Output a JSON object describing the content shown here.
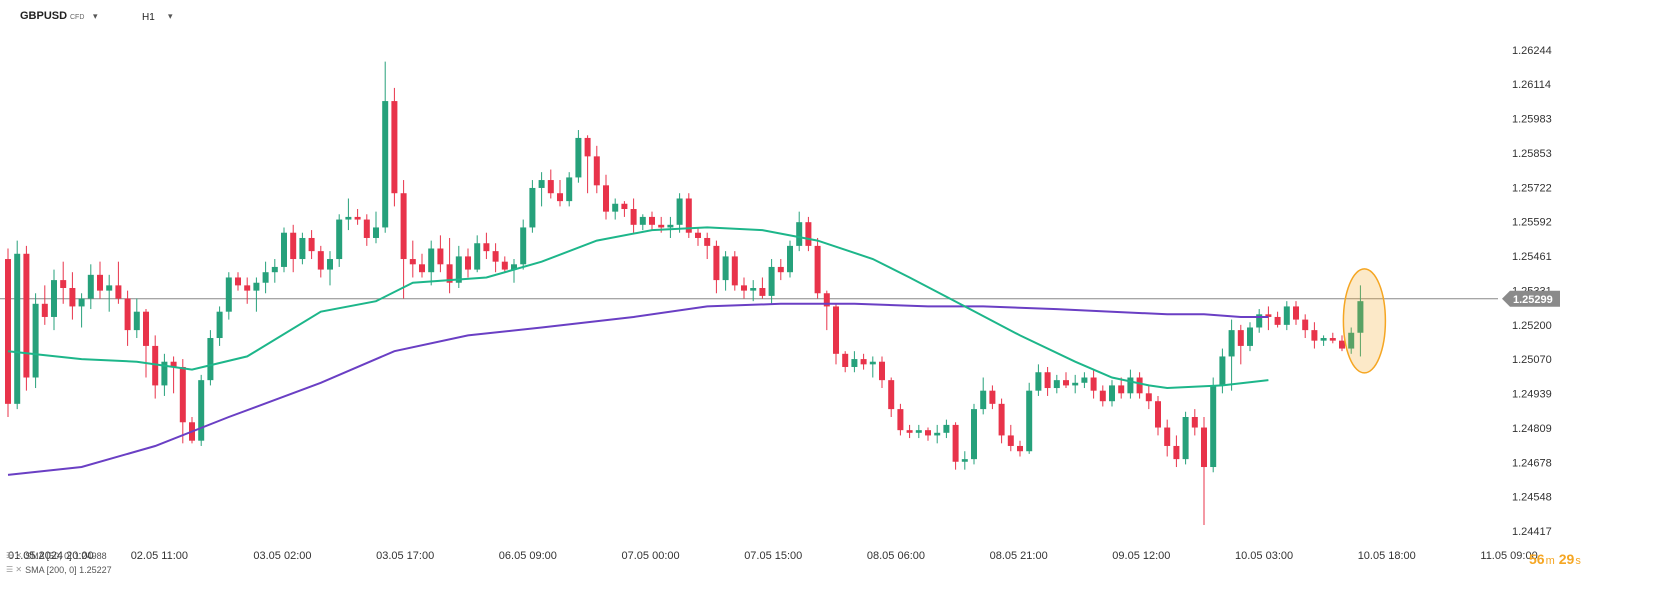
{
  "toolbar": {
    "symbol": "GBPUSD",
    "symbol_tag": "CFD",
    "timeframe": "H1",
    "caret": "▾"
  },
  "colors": {
    "bull": "#26a17b",
    "bear": "#e8334a",
    "sma50": "#1db68a",
    "sma200": "#6a3fc4",
    "price_line": "#888888",
    "price_tag": "#8a8a8a",
    "highlight": "#f5a623"
  },
  "legend": [
    {
      "icons": "☰ ✕",
      "label": "SMA [50, 0] 1.24988"
    },
    {
      "icons": "☰ ✕",
      "label": "SMA [200, 0] 1.25227"
    }
  ],
  "countdown": {
    "minutes": "56",
    "m": "m",
    "seconds": "29",
    "s": "s"
  },
  "chart_data": {
    "type": "candlestick",
    "y_ticks": [
      "1.26244",
      "1.26114",
      "1.25983",
      "1.25853",
      "1.25722",
      "1.25592",
      "1.25461",
      "1.25331",
      "1.25200",
      "1.25070",
      "1.24939",
      "1.24809",
      "1.24678",
      "1.24548",
      "1.24417"
    ],
    "y_range": [
      1.24417,
      1.26244
    ],
    "current_price": "1.25299",
    "x_ticks": [
      "01.05.2024  20:00",
      "02.05  11:00",
      "03.05  02:00",
      "03.05  17:00",
      "06.05  09:00",
      "07.05  00:00",
      "07.05  15:00",
      "08.05  06:00",
      "08.05  21:00",
      "09.05  12:00",
      "10.05  03:00",
      "10.05  18:00",
      "11.05  09:00"
    ],
    "candles": [
      [
        1.2545,
        1.2549,
        1.2485,
        1.249
      ],
      [
        1.249,
        1.2552,
        1.2488,
        1.2547
      ],
      [
        1.2547,
        1.255,
        1.2495,
        1.25
      ],
      [
        1.25,
        1.2532,
        1.2496,
        1.2528
      ],
      [
        1.2528,
        1.2535,
        1.252,
        1.2523
      ],
      [
        1.2523,
        1.2541,
        1.2518,
        1.2537
      ],
      [
        1.2537,
        1.2544,
        1.2528,
        1.2534
      ],
      [
        1.2534,
        1.254,
        1.2522,
        1.2527
      ],
      [
        1.2527,
        1.2532,
        1.2519,
        1.253
      ],
      [
        1.253,
        1.2543,
        1.2526,
        1.2539
      ],
      [
        1.2539,
        1.2544,
        1.253,
        1.2533
      ],
      [
        1.2533,
        1.2539,
        1.2525,
        1.2535
      ],
      [
        1.2535,
        1.2544,
        1.2528,
        1.253
      ],
      [
        1.253,
        1.2533,
        1.2512,
        1.2518
      ],
      [
        1.2518,
        1.253,
        1.2515,
        1.2525
      ],
      [
        1.2525,
        1.2526,
        1.25,
        1.2512
      ],
      [
        1.2512,
        1.2516,
        1.2492,
        1.2497
      ],
      [
        1.2497,
        1.2509,
        1.2493,
        1.2506
      ],
      [
        1.2506,
        1.2508,
        1.2494,
        1.2504
      ],
      [
        1.2504,
        1.2507,
        1.2475,
        1.2483
      ],
      [
        1.2483,
        1.2485,
        1.2475,
        1.2476
      ],
      [
        1.2476,
        1.2501,
        1.2474,
        1.2499
      ],
      [
        1.2499,
        1.2518,
        1.2497,
        1.2515
      ],
      [
        1.2515,
        1.2527,
        1.2512,
        1.2525
      ],
      [
        1.2525,
        1.254,
        1.2522,
        1.2538
      ],
      [
        1.2538,
        1.254,
        1.2533,
        1.2535
      ],
      [
        1.2535,
        1.2538,
        1.2528,
        1.2533
      ],
      [
        1.2533,
        1.2538,
        1.2525,
        1.2536
      ],
      [
        1.2536,
        1.2544,
        1.2532,
        1.254
      ],
      [
        1.254,
        1.2545,
        1.2536,
        1.2542
      ],
      [
        1.2542,
        1.2557,
        1.254,
        1.2555
      ],
      [
        1.2555,
        1.2558,
        1.254,
        1.2545
      ],
      [
        1.2545,
        1.2555,
        1.2543,
        1.2553
      ],
      [
        1.2553,
        1.2556,
        1.2545,
        1.2548
      ],
      [
        1.2548,
        1.255,
        1.2538,
        1.2541
      ],
      [
        1.2541,
        1.2548,
        1.2535,
        1.2545
      ],
      [
        1.2545,
        1.2562,
        1.2542,
        1.256
      ],
      [
        1.256,
        1.2568,
        1.2556,
        1.2561
      ],
      [
        1.2561,
        1.2564,
        1.2558,
        1.256
      ],
      [
        1.256,
        1.2562,
        1.255,
        1.2553
      ],
      [
        1.2553,
        1.2563,
        1.2551,
        1.2557
      ],
      [
        1.2557,
        1.262,
        1.2555,
        1.2605
      ],
      [
        1.2605,
        1.261,
        1.2565,
        1.257
      ],
      [
        1.257,
        1.2575,
        1.253,
        1.2545
      ],
      [
        1.2545,
        1.2552,
        1.2538,
        1.2543
      ],
      [
        1.2543,
        1.2547,
        1.2538,
        1.254
      ],
      [
        1.254,
        1.2552,
        1.2535,
        1.2549
      ],
      [
        1.2549,
        1.2554,
        1.254,
        1.2543
      ],
      [
        1.2543,
        1.2553,
        1.2532,
        1.2536
      ],
      [
        1.2536,
        1.255,
        1.2534,
        1.2546
      ],
      [
        1.2546,
        1.2549,
        1.2538,
        1.2541
      ],
      [
        1.2541,
        1.2554,
        1.254,
        1.2551
      ],
      [
        1.2551,
        1.2555,
        1.2545,
        1.2548
      ],
      [
        1.2548,
        1.2551,
        1.254,
        1.2544
      ],
      [
        1.2544,
        1.2546,
        1.254,
        1.2541
      ],
      [
        1.2541,
        1.2545,
        1.2536,
        1.2543
      ],
      [
        1.2543,
        1.256,
        1.2541,
        1.2557
      ],
      [
        1.2557,
        1.2575,
        1.2555,
        1.2572
      ],
      [
        1.2572,
        1.2578,
        1.2565,
        1.2575
      ],
      [
        1.2575,
        1.2579,
        1.2568,
        1.257
      ],
      [
        1.257,
        1.2575,
        1.2565,
        1.2567
      ],
      [
        1.2567,
        1.2578,
        1.2565,
        1.2576
      ],
      [
        1.2576,
        1.2594,
        1.2574,
        1.2591
      ],
      [
        1.2591,
        1.2592,
        1.257,
        1.2584
      ],
      [
        1.2584,
        1.2588,
        1.257,
        1.2573
      ],
      [
        1.2573,
        1.2577,
        1.256,
        1.2563
      ],
      [
        1.2563,
        1.2568,
        1.256,
        1.2566
      ],
      [
        1.2566,
        1.2567,
        1.2561,
        1.2564
      ],
      [
        1.2564,
        1.2568,
        1.2555,
        1.2558
      ],
      [
        1.2558,
        1.2562,
        1.2556,
        1.2561
      ],
      [
        1.2561,
        1.2563,
        1.2556,
        1.2558
      ],
      [
        1.2558,
        1.2561,
        1.2555,
        1.2557
      ],
      [
        1.2557,
        1.2561,
        1.2553,
        1.2558
      ],
      [
        1.2558,
        1.257,
        1.2555,
        1.2568
      ],
      [
        1.2568,
        1.257,
        1.2553,
        1.2555
      ],
      [
        1.2555,
        1.2557,
        1.255,
        1.2553
      ],
      [
        1.2553,
        1.2555,
        1.2545,
        1.255
      ],
      [
        1.255,
        1.2552,
        1.2532,
        1.2537
      ],
      [
        1.2537,
        1.2548,
        1.2533,
        1.2546
      ],
      [
        1.2546,
        1.2548,
        1.2533,
        1.2535
      ],
      [
        1.2535,
        1.2538,
        1.253,
        1.2533
      ],
      [
        1.2533,
        1.2537,
        1.2529,
        1.2534
      ],
      [
        1.2534,
        1.2538,
        1.253,
        1.2531
      ],
      [
        1.2531,
        1.2545,
        1.2528,
        1.2542
      ],
      [
        1.2542,
        1.2545,
        1.2537,
        1.254
      ],
      [
        1.254,
        1.2552,
        1.2538,
        1.255
      ],
      [
        1.255,
        1.2563,
        1.2548,
        1.2559
      ],
      [
        1.2559,
        1.2561,
        1.2548,
        1.255
      ],
      [
        1.255,
        1.2553,
        1.253,
        1.2532
      ],
      [
        1.2532,
        1.2533,
        1.2518,
        1.2527
      ],
      [
        1.2527,
        1.2528,
        1.2505,
        1.2509
      ],
      [
        1.2509,
        1.251,
        1.2502,
        1.2504
      ],
      [
        1.2504,
        1.251,
        1.2502,
        1.2507
      ],
      [
        1.2507,
        1.2509,
        1.2503,
        1.2505
      ],
      [
        1.2505,
        1.2508,
        1.25,
        1.2506
      ],
      [
        1.2506,
        1.2508,
        1.2496,
        1.2499
      ],
      [
        1.2499,
        1.25,
        1.2485,
        1.2488
      ],
      [
        1.2488,
        1.249,
        1.2478,
        1.248
      ],
      [
        1.248,
        1.2482,
        1.2477,
        1.2479
      ],
      [
        1.2479,
        1.2482,
        1.2477,
        1.248
      ],
      [
        1.248,
        1.2481,
        1.2476,
        1.2478
      ],
      [
        1.2478,
        1.2482,
        1.2475,
        1.2479
      ],
      [
        1.2479,
        1.2484,
        1.2477,
        1.2482
      ],
      [
        1.2482,
        1.2483,
        1.2465,
        1.2468
      ],
      [
        1.2468,
        1.2472,
        1.2465,
        1.2469
      ],
      [
        1.2469,
        1.249,
        1.2467,
        1.2488
      ],
      [
        1.2488,
        1.25,
        1.2486,
        1.2495
      ],
      [
        1.2495,
        1.2497,
        1.2488,
        1.249
      ],
      [
        1.249,
        1.2492,
        1.2475,
        1.2478
      ],
      [
        1.2478,
        1.2482,
        1.2472,
        1.2474
      ],
      [
        1.2474,
        1.2476,
        1.247,
        1.2472
      ],
      [
        1.2472,
        1.2498,
        1.2471,
        1.2495
      ],
      [
        1.2495,
        1.2505,
        1.2493,
        1.2502
      ],
      [
        1.2502,
        1.2504,
        1.2493,
        1.2496
      ],
      [
        1.2496,
        1.2501,
        1.2494,
        1.2499
      ],
      [
        1.2499,
        1.2502,
        1.2496,
        1.2497
      ],
      [
        1.2497,
        1.2501,
        1.2494,
        1.2498
      ],
      [
        1.2498,
        1.2502,
        1.2496,
        1.25
      ],
      [
        1.25,
        1.2503,
        1.2492,
        1.2495
      ],
      [
        1.2495,
        1.2497,
        1.2489,
        1.2491
      ],
      [
        1.2491,
        1.2499,
        1.2489,
        1.2497
      ],
      [
        1.2497,
        1.25,
        1.2492,
        1.2494
      ],
      [
        1.2494,
        1.2503,
        1.2492,
        1.25
      ],
      [
        1.25,
        1.2502,
        1.2492,
        1.2494
      ],
      [
        1.2494,
        1.2497,
        1.2488,
        1.2491
      ],
      [
        1.2491,
        1.2493,
        1.2478,
        1.2481
      ],
      [
        1.2481,
        1.2484,
        1.247,
        1.2474
      ],
      [
        1.2474,
        1.2478,
        1.2466,
        1.2469
      ],
      [
        1.2469,
        1.2487,
        1.2467,
        1.2485
      ],
      [
        1.2485,
        1.2488,
        1.2478,
        1.2481
      ],
      [
        1.2481,
        1.2485,
        1.2444,
        1.2466
      ],
      [
        1.2466,
        1.25,
        1.2464,
        1.2497
      ],
      [
        1.2497,
        1.2511,
        1.2494,
        1.2508
      ],
      [
        1.2508,
        1.2522,
        1.2495,
        1.2518
      ],
      [
        1.2518,
        1.252,
        1.2505,
        1.2512
      ],
      [
        1.2512,
        1.2521,
        1.251,
        1.2519
      ],
      [
        1.2519,
        1.2526,
        1.2517,
        1.2524
      ],
      [
        1.2524,
        1.2527,
        1.2518,
        1.2523
      ],
      [
        1.2523,
        1.2525,
        1.2519,
        1.252
      ],
      [
        1.252,
        1.2529,
        1.2518,
        1.2527
      ],
      [
        1.2527,
        1.2529,
        1.252,
        1.2522
      ],
      [
        1.2522,
        1.2524,
        1.2515,
        1.2518
      ],
      [
        1.2518,
        1.2521,
        1.2511,
        1.2514
      ],
      [
        1.2514,
        1.2516,
        1.2512,
        1.2515
      ],
      [
        1.2515,
        1.2517,
        1.2513,
        1.2514
      ],
      [
        1.2514,
        1.2516,
        1.251,
        1.2511
      ],
      [
        1.2511,
        1.2519,
        1.2509,
        1.2517
      ],
      [
        1.2517,
        1.2535,
        1.2508,
        1.2529
      ]
    ],
    "sma50": [
      [
        0,
        1.251
      ],
      [
        8,
        1.2507
      ],
      [
        14,
        1.2506
      ],
      [
        20,
        1.2503
      ],
      [
        26,
        1.2508
      ],
      [
        34,
        1.2525
      ],
      [
        40,
        1.2529
      ],
      [
        44,
        1.2536
      ],
      [
        52,
        1.2538
      ],
      [
        58,
        1.2544
      ],
      [
        64,
        1.2552
      ],
      [
        70,
        1.2556
      ],
      [
        76,
        1.2557
      ],
      [
        82,
        1.2556
      ],
      [
        88,
        1.2552
      ],
      [
        94,
        1.2545
      ],
      [
        98,
        1.2538
      ],
      [
        104,
        1.2527
      ],
      [
        110,
        1.2516
      ],
      [
        116,
        1.2506
      ],
      [
        120,
        1.25
      ],
      [
        124,
        1.2497
      ],
      [
        126,
        1.2496
      ],
      [
        132,
        1.2497
      ],
      [
        137,
        1.2499
      ]
    ],
    "sma200": [
      [
        0,
        1.2463
      ],
      [
        8,
        1.2466
      ],
      [
        16,
        1.2474
      ],
      [
        24,
        1.2485
      ],
      [
        34,
        1.2498
      ],
      [
        42,
        1.251
      ],
      [
        50,
        1.2516
      ],
      [
        58,
        1.2519
      ],
      [
        68,
        1.2523
      ],
      [
        76,
        1.2527
      ],
      [
        84,
        1.2528
      ],
      [
        92,
        1.2528
      ],
      [
        100,
        1.2527
      ],
      [
        106,
        1.2527
      ],
      [
        114,
        1.2526
      ],
      [
        120,
        1.2525
      ],
      [
        126,
        1.2524
      ],
      [
        130,
        1.2524
      ],
      [
        134,
        1.2523
      ],
      [
        137,
        1.2523
      ]
    ]
  }
}
